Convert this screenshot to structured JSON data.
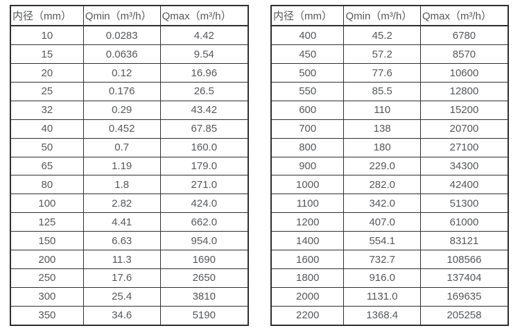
{
  "tables": [
    {
      "title": "flow-spec-small-diameters",
      "headers": [
        "内径（mm）",
        "Qmin（m³/h）",
        "Qmax（m³/h）"
      ],
      "rows": [
        [
          "10",
          "0.0283",
          "4.42"
        ],
        [
          "15",
          "0.0636",
          "9.54"
        ],
        [
          "20",
          "0.12",
          "16.96"
        ],
        [
          "25",
          "0.176",
          "26.5"
        ],
        [
          "32",
          "0.29",
          "43.42"
        ],
        [
          "40",
          "0.452",
          "67.85"
        ],
        [
          "50",
          "0.7",
          "160.0"
        ],
        [
          "65",
          "1.19",
          "179.0"
        ],
        [
          "80",
          "1.8",
          "271.0"
        ],
        [
          "100",
          "2.82",
          "424.0"
        ],
        [
          "125",
          "4.41",
          "662.0"
        ],
        [
          "150",
          "6.63",
          "954.0"
        ],
        [
          "200",
          "11.3",
          "1690"
        ],
        [
          "250",
          "17.6",
          "2650"
        ],
        [
          "300",
          "25.4",
          "3810"
        ],
        [
          "350",
          "34.6",
          "5190"
        ]
      ]
    },
    {
      "title": "flow-spec-large-diameters",
      "headers": [
        "内径（mm）",
        "Qmin（m³/h）",
        "Qmax（m³/h）"
      ],
      "rows": [
        [
          "400",
          "45.2",
          "6780"
        ],
        [
          "450",
          "57.2",
          "8570"
        ],
        [
          "500",
          "77.6",
          "10600"
        ],
        [
          "550",
          "85.5",
          "12800"
        ],
        [
          "600",
          "110",
          "15200"
        ],
        [
          "700",
          "138",
          "20700"
        ],
        [
          "800",
          "180",
          "27100"
        ],
        [
          "900",
          "229.0",
          "34300"
        ],
        [
          "1000",
          "282.0",
          "42400"
        ],
        [
          "1100",
          "342.0",
          "51300"
        ],
        [
          "1200",
          "407.0",
          "61000"
        ],
        [
          "1400",
          "554.1",
          "83121"
        ],
        [
          "1600",
          "732.7",
          "108566"
        ],
        [
          "1800",
          "916.0",
          "137404"
        ],
        [
          "2000",
          "1131.0",
          "169635"
        ],
        [
          "2200",
          "1368.4",
          "205258"
        ]
      ]
    }
  ]
}
